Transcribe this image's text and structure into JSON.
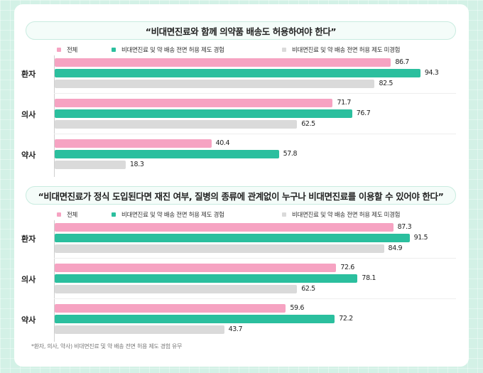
{
  "chart_data": [
    {
      "type": "bar",
      "orientation": "horizontal",
      "title": "“비대면진료와 함께 의약품 배송도 허용하여야 한다”",
      "categories": [
        "환자",
        "의사",
        "약사"
      ],
      "series": [
        {
          "name": "전체",
          "color": "#f6a3c2",
          "values": [
            86.7,
            71.7,
            40.4
          ],
          "labels": [
            "86.7",
            "71.7",
            "40.4"
          ]
        },
        {
          "name": "비대면진료 및 약 배송 전면 허용 제도 경험",
          "color": "#2bbf9e",
          "values": [
            94.3,
            76.7,
            57.8
          ],
          "labels": [
            "94.3",
            "76.7",
            "57.8"
          ]
        },
        {
          "name": "비대면진료 및 약 배송 전면 허용 제도 미경험",
          "color": "#dadada",
          "values": [
            82.5,
            62.5,
            18.3
          ],
          "labels": [
            "82.5",
            "62.5",
            "18.3"
          ]
        }
      ],
      "xlim": [
        0,
        100
      ],
      "legend_position": "top",
      "grid": false
    },
    {
      "type": "bar",
      "orientation": "horizontal",
      "title": "“비대면진료가 정식 도입된다면 재진 여부, 질병의 종류에 관계없이 누구나 비대면진료를 이용할 수 있어야 한다”",
      "categories": [
        "환자",
        "의사",
        "약사"
      ],
      "series": [
        {
          "name": "전체",
          "color": "#f6a3c2",
          "values": [
            87.3,
            72.6,
            59.6
          ],
          "labels": [
            "87.3",
            "72.6",
            "59.6"
          ]
        },
        {
          "name": "비대면진료 및 약 배송 전면 허용 제도 경험",
          "color": "#2bbf9e",
          "values": [
            91.5,
            78.1,
            72.2
          ],
          "labels": [
            "91.5",
            "78.1",
            "72.2"
          ]
        },
        {
          "name": "비대면진료 및 약 배송 전면 허용 제도 미경험",
          "color": "#dadada",
          "values": [
            84.9,
            62.5,
            43.7
          ],
          "labels": [
            "84.9",
            "62.5",
            "43.7"
          ]
        }
      ],
      "xlim": [
        0,
        100
      ],
      "legend_position": "top",
      "grid": false
    }
  ],
  "footnote": "*환자, 의사, 약사) 비대면진료 및 약 배송 전면 허용 제도 경험 유무"
}
